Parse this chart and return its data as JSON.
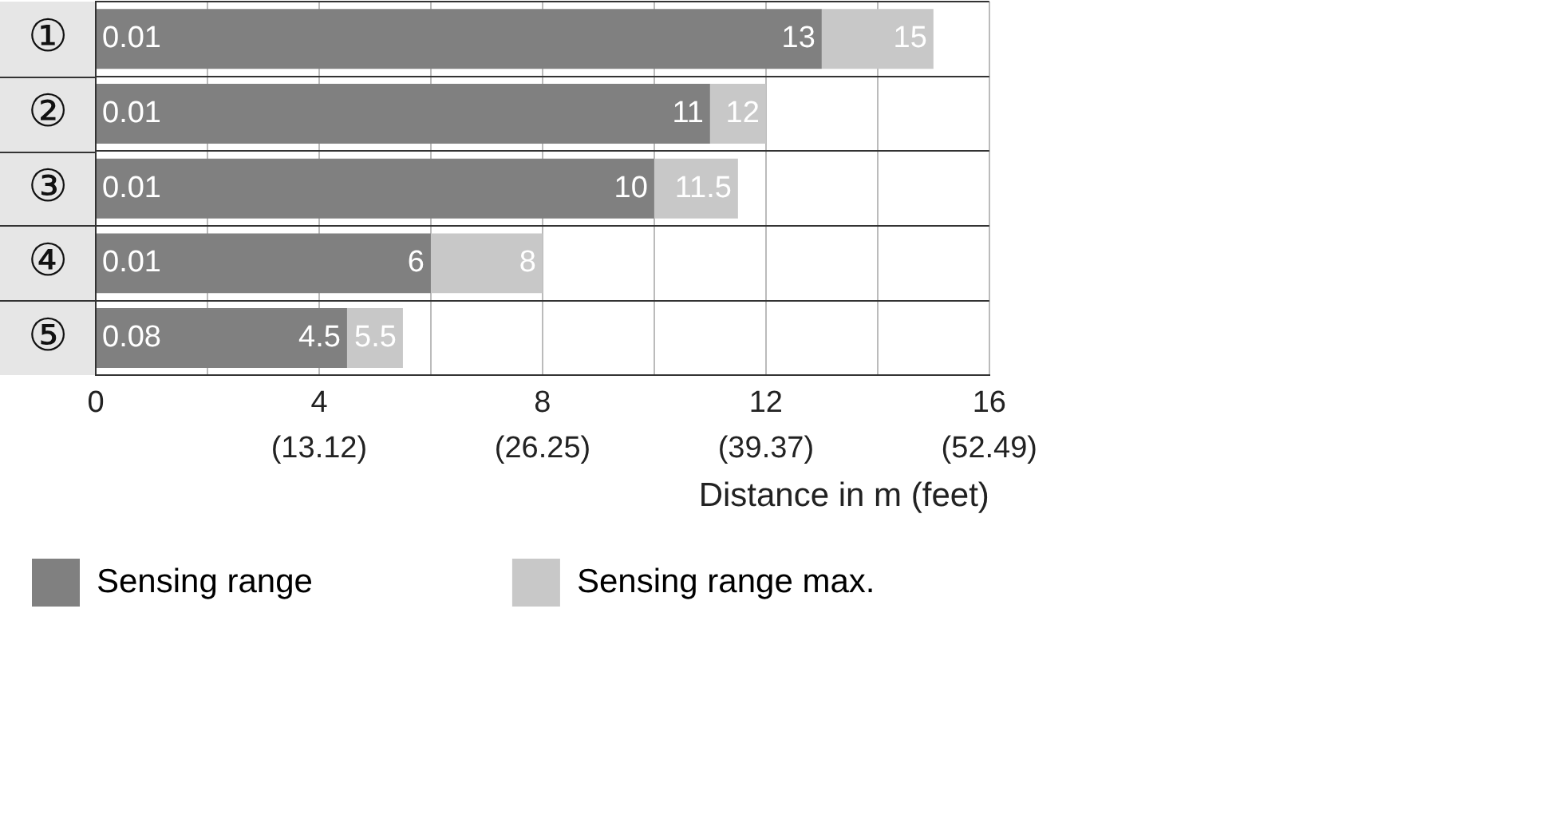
{
  "chart_data": {
    "type": "bar",
    "orientation": "horizontal",
    "categories": [
      "①",
      "②",
      "③",
      "④",
      "⑤"
    ],
    "series": [
      {
        "name": "Sensing range",
        "color": "#808080",
        "values": [
          13,
          11,
          10,
          6,
          4.5
        ],
        "value_labels": [
          "13",
          "11",
          "10",
          "6",
          "4.5"
        ]
      },
      {
        "name": "Sensing range max.",
        "color": "#c8c8c8",
        "values": [
          2,
          1,
          1.5,
          2,
          1
        ]
      }
    ],
    "stacked": true,
    "totals": [
      "15",
      "12",
      "11.5",
      "8",
      "5.5"
    ],
    "xlim": [
      0,
      16
    ],
    "xticks": [
      0,
      {
        "value": 2,
        "label": null
      },
      4,
      {
        "value": 6,
        "label": null
      },
      8,
      {
        "value": 10,
        "label": null
      },
      12,
      {
        "value": 14,
        "label": null
      },
      16
    ],
    "x2lim": [
      0,
      52.49
    ],
    "x2ticks": [
      {
        "value": 13.12,
        "label": "(13.12)"
      },
      {
        "value": 26.25,
        "label": "(26.25)"
      },
      {
        "value": 39.37,
        "label": "(39.37)"
      },
      {
        "value": 52.49,
        "label": "(52.49)"
      }
    ],
    "xlabel": "Distance in m (feet)",
    "grid": true,
    "legend": "bottom left",
    "annotations": [
      {
        "text": "0.01",
        "y": "①"
      },
      {
        "text": "0.01",
        "y": "②"
      },
      {
        "text": "0.01",
        "y": "③"
      },
      {
        "text": "0.01",
        "y": "④"
      },
      {
        "text": "0.08",
        "y": "⑤"
      }
    ]
  }
}
